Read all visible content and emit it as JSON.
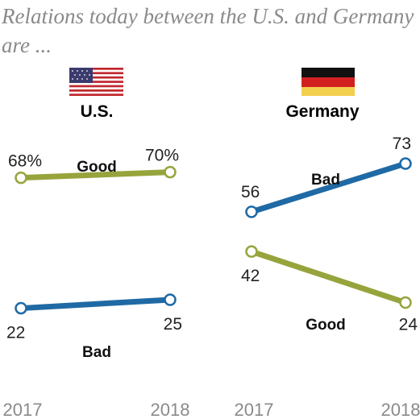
{
  "title": "Relations today between the U.S. and Germany are ...",
  "colors": {
    "good": "#97a43c",
    "bad": "#1f6aa5"
  },
  "chart_data": [
    {
      "type": "line",
      "title": "U.S.",
      "flag_icon": "us-flag-icon",
      "x": [
        "2017",
        "2018"
      ],
      "ylim": [
        0,
        100
      ],
      "series": [
        {
          "name": "Good",
          "values": [
            68,
            70
          ],
          "labels": [
            "68%",
            "70%"
          ]
        },
        {
          "name": "Bad",
          "values": [
            22,
            25
          ],
          "labels": [
            "22",
            "25"
          ]
        }
      ]
    },
    {
      "type": "line",
      "title": "Germany",
      "flag_icon": "germany-flag-icon",
      "x": [
        "2017",
        "2018"
      ],
      "ylim": [
        0,
        100
      ],
      "series": [
        {
          "name": "Bad",
          "values": [
            56,
            73
          ],
          "labels": [
            "56",
            "73"
          ]
        },
        {
          "name": "Good",
          "values": [
            42,
            24
          ],
          "labels": [
            "42",
            "24"
          ]
        }
      ]
    }
  ]
}
